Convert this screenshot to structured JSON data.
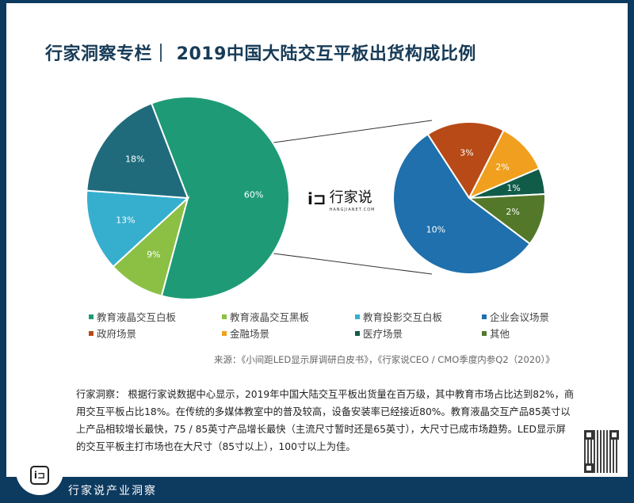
{
  "title": "行家洞察专栏｜ 2019中国大陆交互平板出货构成比例",
  "center_logo": {
    "mark": "i⊐",
    "name": "行家说",
    "url": "HANGJIANET.COM"
  },
  "chart_data": [
    {
      "type": "pie",
      "series": [
        {
          "name": "教育液晶交互白板",
          "value": 60,
          "label": "60%",
          "color": "#1e9b76"
        },
        {
          "name": "教育液晶交互黑板",
          "value": 9,
          "label": "9%",
          "color": "#8bc045"
        },
        {
          "name": "教育投影交互白板",
          "value": 13,
          "label": "13%",
          "color": "#36afce"
        },
        {
          "name": "企业会议场景",
          "value": 18,
          "label": "18%",
          "color": "#1f6b7c"
        }
      ],
      "exploded": "企业会议场景"
    },
    {
      "type": "pie",
      "series": [
        {
          "name": "政府场景",
          "value": 3,
          "label": "3%",
          "color": "#b84a17"
        },
        {
          "name": "金融场景",
          "value": 2,
          "label": "2%",
          "color": "#f0a01e"
        },
        {
          "name": "医疗场景",
          "value": 1,
          "label": "1%",
          "color": "#115c49"
        },
        {
          "name": "其他",
          "value": 2,
          "label": "2%",
          "color": "#53782a"
        },
        {
          "name": "企业会议场景",
          "value": 10,
          "label": "10%",
          "color": "#1f70ac"
        }
      ]
    }
  ],
  "legend": [
    {
      "label": "教育液晶交互白板",
      "color": "#1e9b76"
    },
    {
      "label": "教育液晶交互黑板",
      "color": "#8bc045"
    },
    {
      "label": "教育投影交互白板",
      "color": "#36afce"
    },
    {
      "label": "企业会议场景",
      "color": "#1f70ac"
    },
    {
      "label": "政府场景",
      "color": "#b84a17"
    },
    {
      "label": "金融场景",
      "color": "#f0a01e"
    },
    {
      "label": "医疗场景",
      "color": "#115c49"
    },
    {
      "label": "其他",
      "color": "#53782a"
    }
  ],
  "source": "来源：《小间距LED显示屏调研白皮书》，《行家说CEO / CMO季度内参Q2（2020）》",
  "insight": "行家洞察： 根据行家说数据中心显示，2019年中国大陆交互平板出货量在百万级，其中教育市场占比达到82%，商用交互平板占比18%。在传统的多媒体教室中的普及较高，设备安装率已经接近80%。教育液晶交互产品85英寸以上产品相较增长最快，75 / 85英寸产品增长最快（主流尺寸暂时还是65英寸），大尺寸已成市场趋势。LED显示屏的交互平板主打市场也在大尺寸（85寸以上），100寸以上为佳。",
  "footer": {
    "logo": "i⊐",
    "text": "行家说产业洞察"
  }
}
